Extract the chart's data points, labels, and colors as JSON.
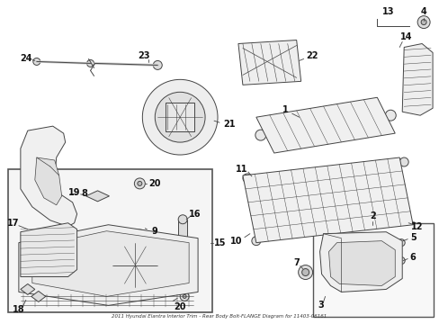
{
  "title": "2011 Hyundai Elantra Interior Trim - Rear Body Bolt-FLANGE Diagram for 11403-06161",
  "bg": "#ffffff",
  "lc": "#444444",
  "gray": "#aaaaaa",
  "fig_w": 4.89,
  "fig_h": 3.6,
  "dpi": 100
}
